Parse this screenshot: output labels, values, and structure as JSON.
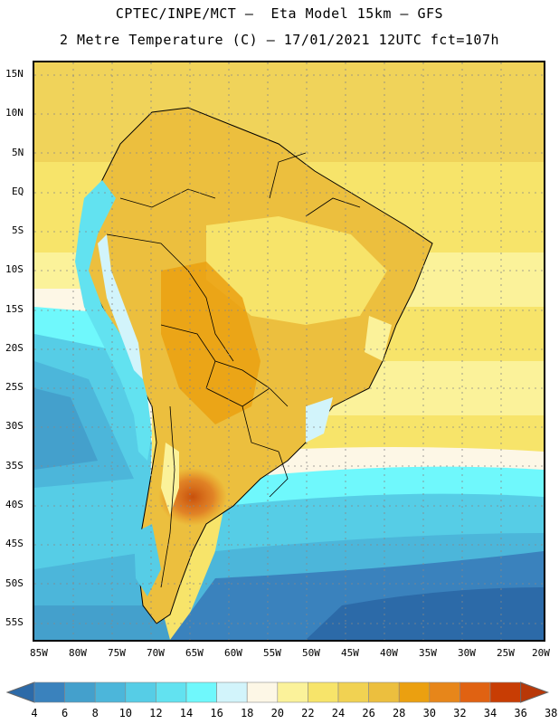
{
  "header": {
    "line1": "CPTEC/INPE/MCT –  Eta Model 15km – GFS",
    "line2": "2 Metre Temperature (C) – 17/01/2021 12UTC fct=107h"
  },
  "map": {
    "lat_labels": [
      "15N",
      "10N",
      "5N",
      "EQ",
      "5S",
      "10S",
      "15S",
      "20S",
      "25S",
      "30S",
      "35S",
      "40S",
      "45S",
      "50S",
      "55S"
    ],
    "lon_labels": [
      "85W",
      "80W",
      "75W",
      "70W",
      "65W",
      "60W",
      "55W",
      "50W",
      "45W",
      "40W",
      "35W",
      "30W",
      "25W",
      "20W"
    ],
    "grid": true
  },
  "colorbar": {
    "labels": [
      "4",
      "6",
      "8",
      "10",
      "12",
      "14",
      "16",
      "18",
      "20",
      "22",
      "24",
      "26",
      "28",
      "30",
      "32",
      "34",
      "36",
      "38"
    ],
    "colors": [
      "#2c6aa8",
      "#3a82bd",
      "#44a0cc",
      "#4cb6da",
      "#56cde6",
      "#62e2f0",
      "#6ff8fc",
      "#d2f4fb",
      "#fdf7e6",
      "#fbf29a",
      "#f7e46a",
      "#f1d252",
      "#ecbf3e",
      "#eba010",
      "#e7861a",
      "#e06212",
      "#c83d04",
      "#b83808"
    ]
  }
}
